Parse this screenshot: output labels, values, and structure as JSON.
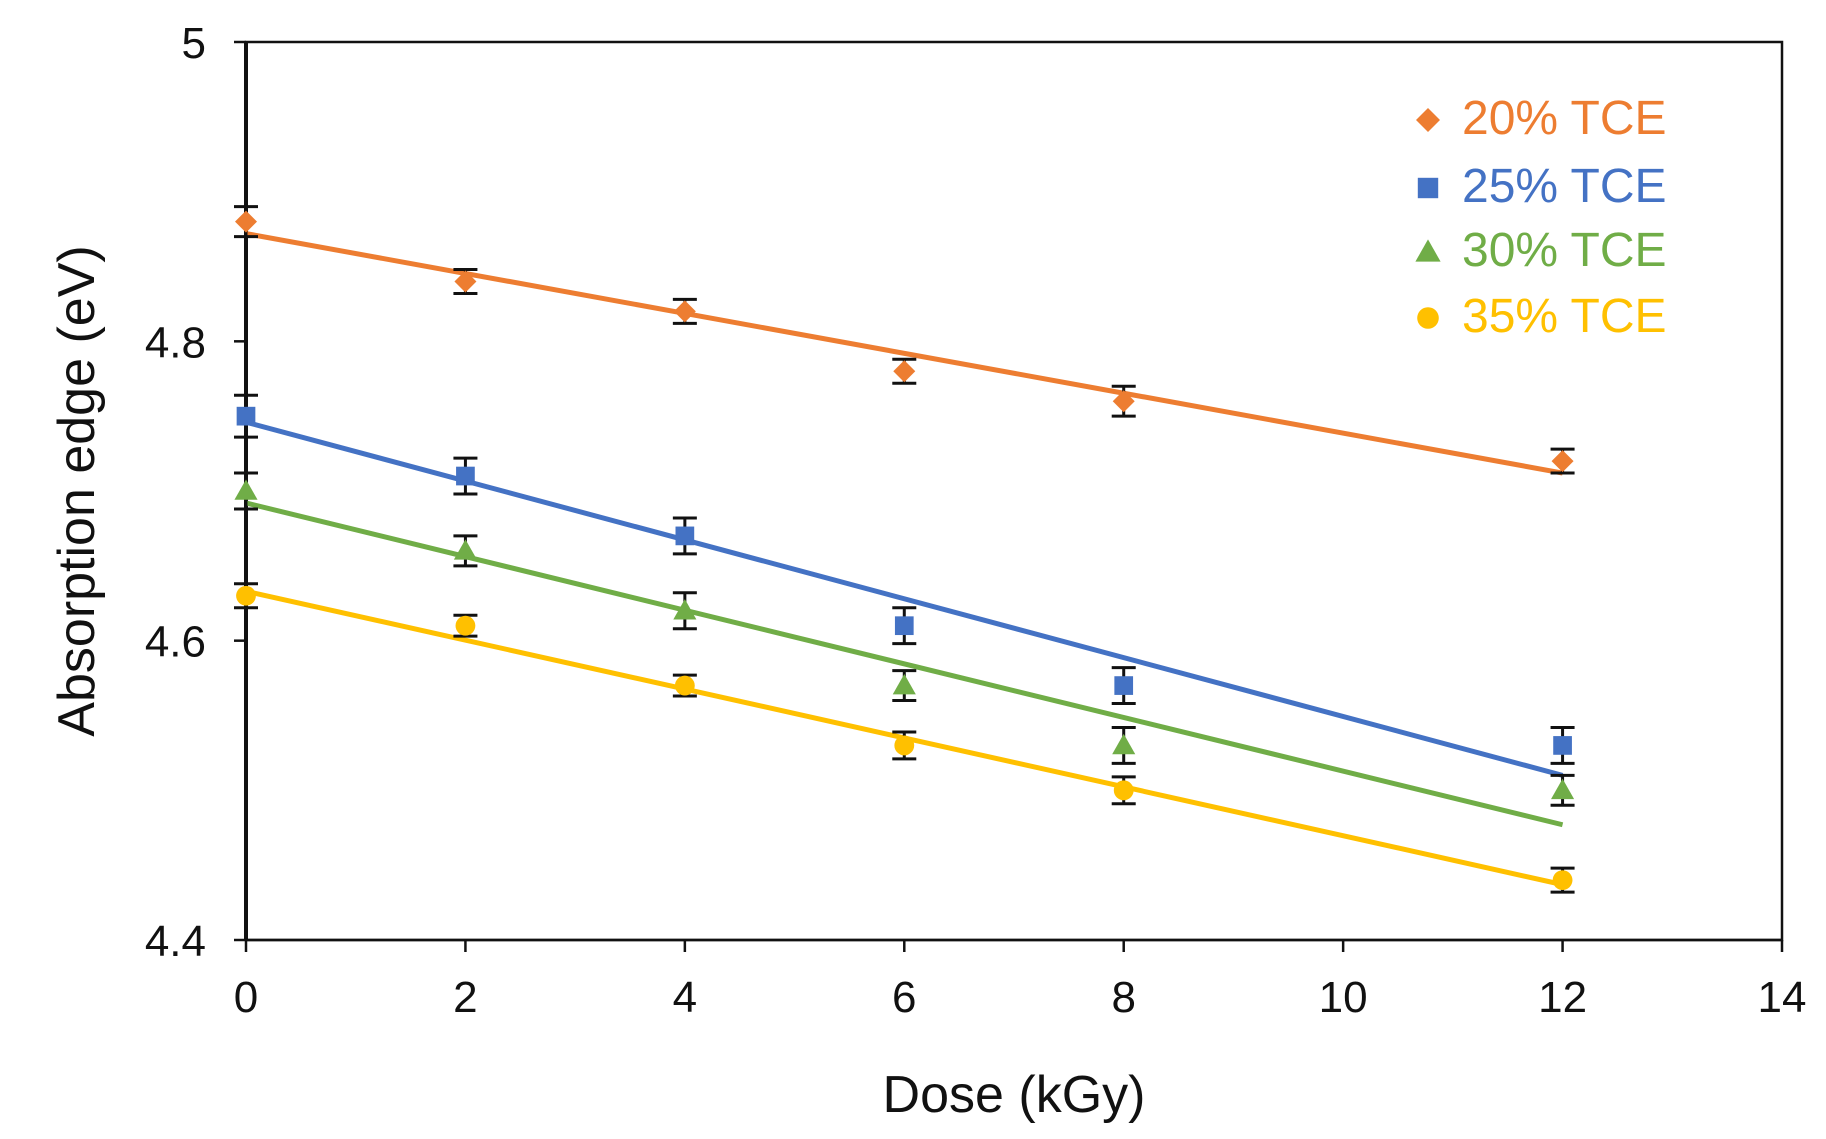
{
  "chart_data": {
    "type": "scatter",
    "title": "",
    "xlabel": "Dose (kGy)",
    "ylabel": "Absorption edge (eV)",
    "xlim": [
      0,
      14
    ],
    "ylim": [
      4.4,
      5.0
    ],
    "xticks": [
      "0",
      "2",
      "4",
      "6",
      "8",
      "10",
      "12",
      "14"
    ],
    "xtick_values": [
      0,
      2,
      4,
      6,
      8,
      10,
      12,
      14
    ],
    "yticks": [
      "4.4",
      "4.6",
      "4.8",
      "5"
    ],
    "ytick_values": [
      4.4,
      4.6,
      4.8,
      5.0
    ],
    "grid": false,
    "legend_position": "top-right",
    "x": [
      0,
      2,
      4,
      6,
      8,
      12
    ],
    "series": [
      {
        "name": "20% TCE",
        "marker": "diamond",
        "color": "#ED7D31",
        "values": [
          4.88,
          4.84,
          4.82,
          4.78,
          4.76,
          4.72
        ],
        "errors": [
          0.01,
          0.008,
          0.008,
          0.008,
          0.01,
          0.008
        ],
        "fit": [
          4.872,
          4.712
        ]
      },
      {
        "name": "25% TCE",
        "marker": "square",
        "color": "#4472C4",
        "values": [
          4.75,
          4.71,
          4.67,
          4.61,
          4.57,
          4.53
        ],
        "errors": [
          0.014,
          0.012,
          0.012,
          0.012,
          0.012,
          0.012
        ],
        "fit": [
          4.746,
          4.51
        ]
      },
      {
        "name": "30% TCE",
        "marker": "triangle",
        "color": "#70AD47",
        "values": [
          4.7,
          4.66,
          4.62,
          4.57,
          4.53,
          4.5
        ],
        "errors": [
          0.012,
          0.01,
          0.012,
          0.01,
          0.012,
          0.01
        ],
        "fit": [
          4.692,
          4.477
        ]
      },
      {
        "name": "35% TCE",
        "marker": "circle",
        "color": "#FFC000",
        "values": [
          4.63,
          4.61,
          4.57,
          4.53,
          4.5,
          4.44
        ],
        "errors": [
          0.008,
          0.007,
          0.007,
          0.009,
          0.009,
          0.008
        ],
        "fit": [
          4.633,
          4.437
        ]
      }
    ]
  }
}
